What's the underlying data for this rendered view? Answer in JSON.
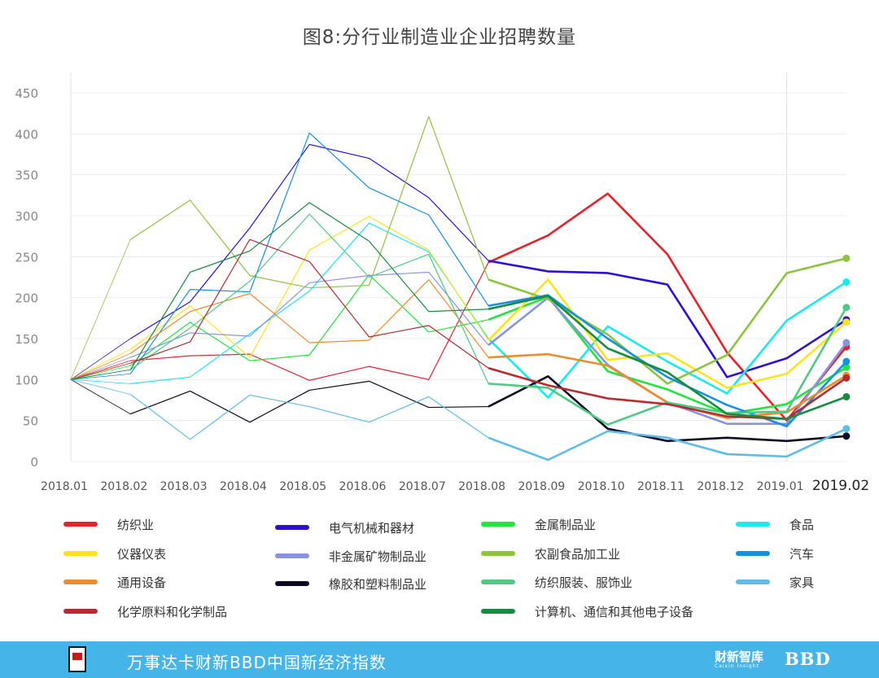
{
  "chart_data": {
    "type": "line",
    "title": "图8:分行业制造业企业招聘数量",
    "xlabel": "",
    "ylabel": "",
    "ylim": [
      0,
      450
    ],
    "yticks": [
      0,
      50,
      100,
      150,
      200,
      250,
      300,
      350,
      400,
      450
    ],
    "grid": true,
    "legend_position": "bottom",
    "categories": [
      "2018.01",
      "2018.02",
      "2018.03",
      "2018.04",
      "2018.05",
      "2018.06",
      "2018.07",
      "2018.08",
      "2018.09",
      "2018.10",
      "2018.11",
      "2018.12",
      "2019.01",
      "2019.02"
    ],
    "series": [
      {
        "name": "纺织业",
        "color": "#e8212b",
        "values": [
          100,
          123,
          129,
          131,
          99,
          116,
          100,
          243,
          276,
          327,
          253,
          133,
          50,
          140
        ]
      },
      {
        "name": "电气机械和器材",
        "color": "#2c10d6",
        "values": [
          100,
          150,
          195,
          285,
          387,
          370,
          322,
          245,
          232,
          230,
          216,
          103,
          126,
          173
        ]
      },
      {
        "name": "金属制品业",
        "color": "#1ee63a",
        "values": [
          100,
          117,
          170,
          123,
          130,
          228,
          158,
          173,
          201,
          110,
          88,
          58,
          70,
          115
        ]
      },
      {
        "name": "食品",
        "color": "#19e9f0",
        "values": [
          100,
          95,
          103,
          156,
          208,
          291,
          256,
          150,
          78,
          165,
          122,
          83,
          172,
          219
        ]
      },
      {
        "name": "仪器仪表",
        "color": "#fce31e",
        "values": [
          100,
          137,
          190,
          127,
          258,
          299,
          258,
          148,
          222,
          124,
          132,
          90,
          107,
          170
        ]
      },
      {
        "name": "非金属矿物制品业",
        "color": "#8894e0",
        "values": [
          100,
          127,
          157,
          153,
          218,
          227,
          231,
          142,
          200,
          118,
          72,
          46,
          46,
          145
        ]
      },
      {
        "name": "农副食品加工业",
        "color": "#8cc43f",
        "values": [
          100,
          271,
          319,
          227,
          212,
          215,
          421,
          222,
          198,
          155,
          95,
          130,
          230,
          248
        ]
      },
      {
        "name": "汽车",
        "color": "#1491e4",
        "values": [
          100,
          107,
          210,
          207,
          401,
          334,
          301,
          190,
          203,
          150,
          103,
          69,
          43,
          122
        ]
      },
      {
        "name": "通用设备",
        "color": "#f08b2a",
        "values": [
          100,
          132,
          183,
          205,
          145,
          148,
          222,
          127,
          131,
          117,
          72,
          53,
          60,
          105
        ]
      },
      {
        "name": "橡胶和塑料制品业",
        "color": "#0e0a24",
        "values": [
          100,
          58,
          86,
          48,
          87,
          98,
          66,
          67,
          104,
          40,
          25,
          29,
          25,
          31
        ]
      },
      {
        "name": "纺织服装、服饰业",
        "color": "#4fca83",
        "values": [
          100,
          112,
          163,
          220,
          302,
          225,
          253,
          95,
          90,
          45,
          72,
          59,
          61,
          188
        ]
      },
      {
        "name": "家具",
        "color": "#5cbde9",
        "values": [
          100,
          82,
          27,
          81,
          67,
          48,
          79,
          29,
          2,
          37,
          29,
          9,
          6,
          40
        ]
      },
      {
        "name": "化学原料和化学制品",
        "color": "#b82a2e",
        "values": [
          100,
          120,
          146,
          271,
          244,
          152,
          166,
          114,
          93,
          77,
          70,
          55,
          52,
          102
        ]
      },
      {
        "name": "计算机、通信和其他电子设备",
        "color": "#178b3e",
        "values": [
          100,
          112,
          231,
          257,
          316,
          269,
          183,
          186,
          202,
          138,
          109,
          58,
          52,
          79
        ]
      }
    ]
  },
  "legend": [
    {
      "label": "纺织业",
      "color": "#e8212b"
    },
    {
      "label": "电气机械和器材",
      "color": "#2c10d6"
    },
    {
      "label": "金属制品业",
      "color": "#1ee63a"
    },
    {
      "label": "食品",
      "color": "#19e9f0"
    },
    {
      "label": "仪器仪表",
      "color": "#fce31e"
    },
    {
      "label": "非金属矿物制品业",
      "color": "#8894e0"
    },
    {
      "label": "农副食品加工业",
      "color": "#8cc43f"
    },
    {
      "label": "汽车",
      "color": "#1491e4"
    },
    {
      "label": "通用设备",
      "color": "#f08b2a"
    },
    {
      "label": "橡胶和塑料制品业",
      "color": "#0e0a24"
    },
    {
      "label": "纺织服装、服饰业",
      "color": "#4fca83"
    },
    {
      "label": "家具",
      "color": "#5cbde9"
    },
    {
      "label": "化学原料和化学制品",
      "color": "#b82a2e"
    },
    {
      "label": "计算机、通信和其他电子设备",
      "color": "#178b3e"
    }
  ],
  "footer": {
    "text": "万事达卡财新BBD中国新经济指数",
    "logo_caixin": "财新智库",
    "logo_caixin_sub": "Caixin Insight",
    "logo_bbd": "BBD"
  }
}
